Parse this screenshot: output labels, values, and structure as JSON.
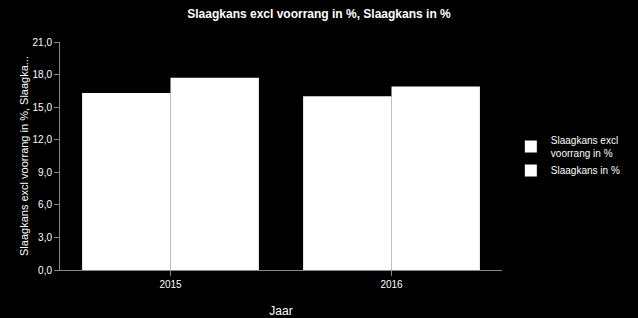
{
  "chart_data": {
    "type": "bar",
    "title": "Slaagkans excl voorrang in %, Slaagkans in %",
    "x_label": "Jaar",
    "y_label": "Slaagkans excl voorrang in %, Slaagka...",
    "categories": [
      "2015",
      "2016"
    ],
    "series": [
      {
        "name": "Slaagkans excl voorrang in %",
        "color": "#ffffff",
        "values": [
          16.3,
          16.0
        ]
      },
      {
        "name": "Slaagkans in %",
        "color": "#ffffff",
        "values": [
          17.7,
          16.9
        ]
      }
    ],
    "ylim": [
      0,
      21
    ],
    "yticks": [
      {
        "value": 0,
        "label": "0,0"
      },
      {
        "value": 3,
        "label": "3,0"
      },
      {
        "value": 6,
        "label": "6,0"
      },
      {
        "value": 9,
        "label": "9,0"
      },
      {
        "value": 12,
        "label": "12,0"
      },
      {
        "value": 15,
        "label": "15,0"
      },
      {
        "value": 18,
        "label": "18,0"
      },
      {
        "value": 21,
        "label": "21,0"
      }
    ],
    "grid": false,
    "legend": "right"
  }
}
